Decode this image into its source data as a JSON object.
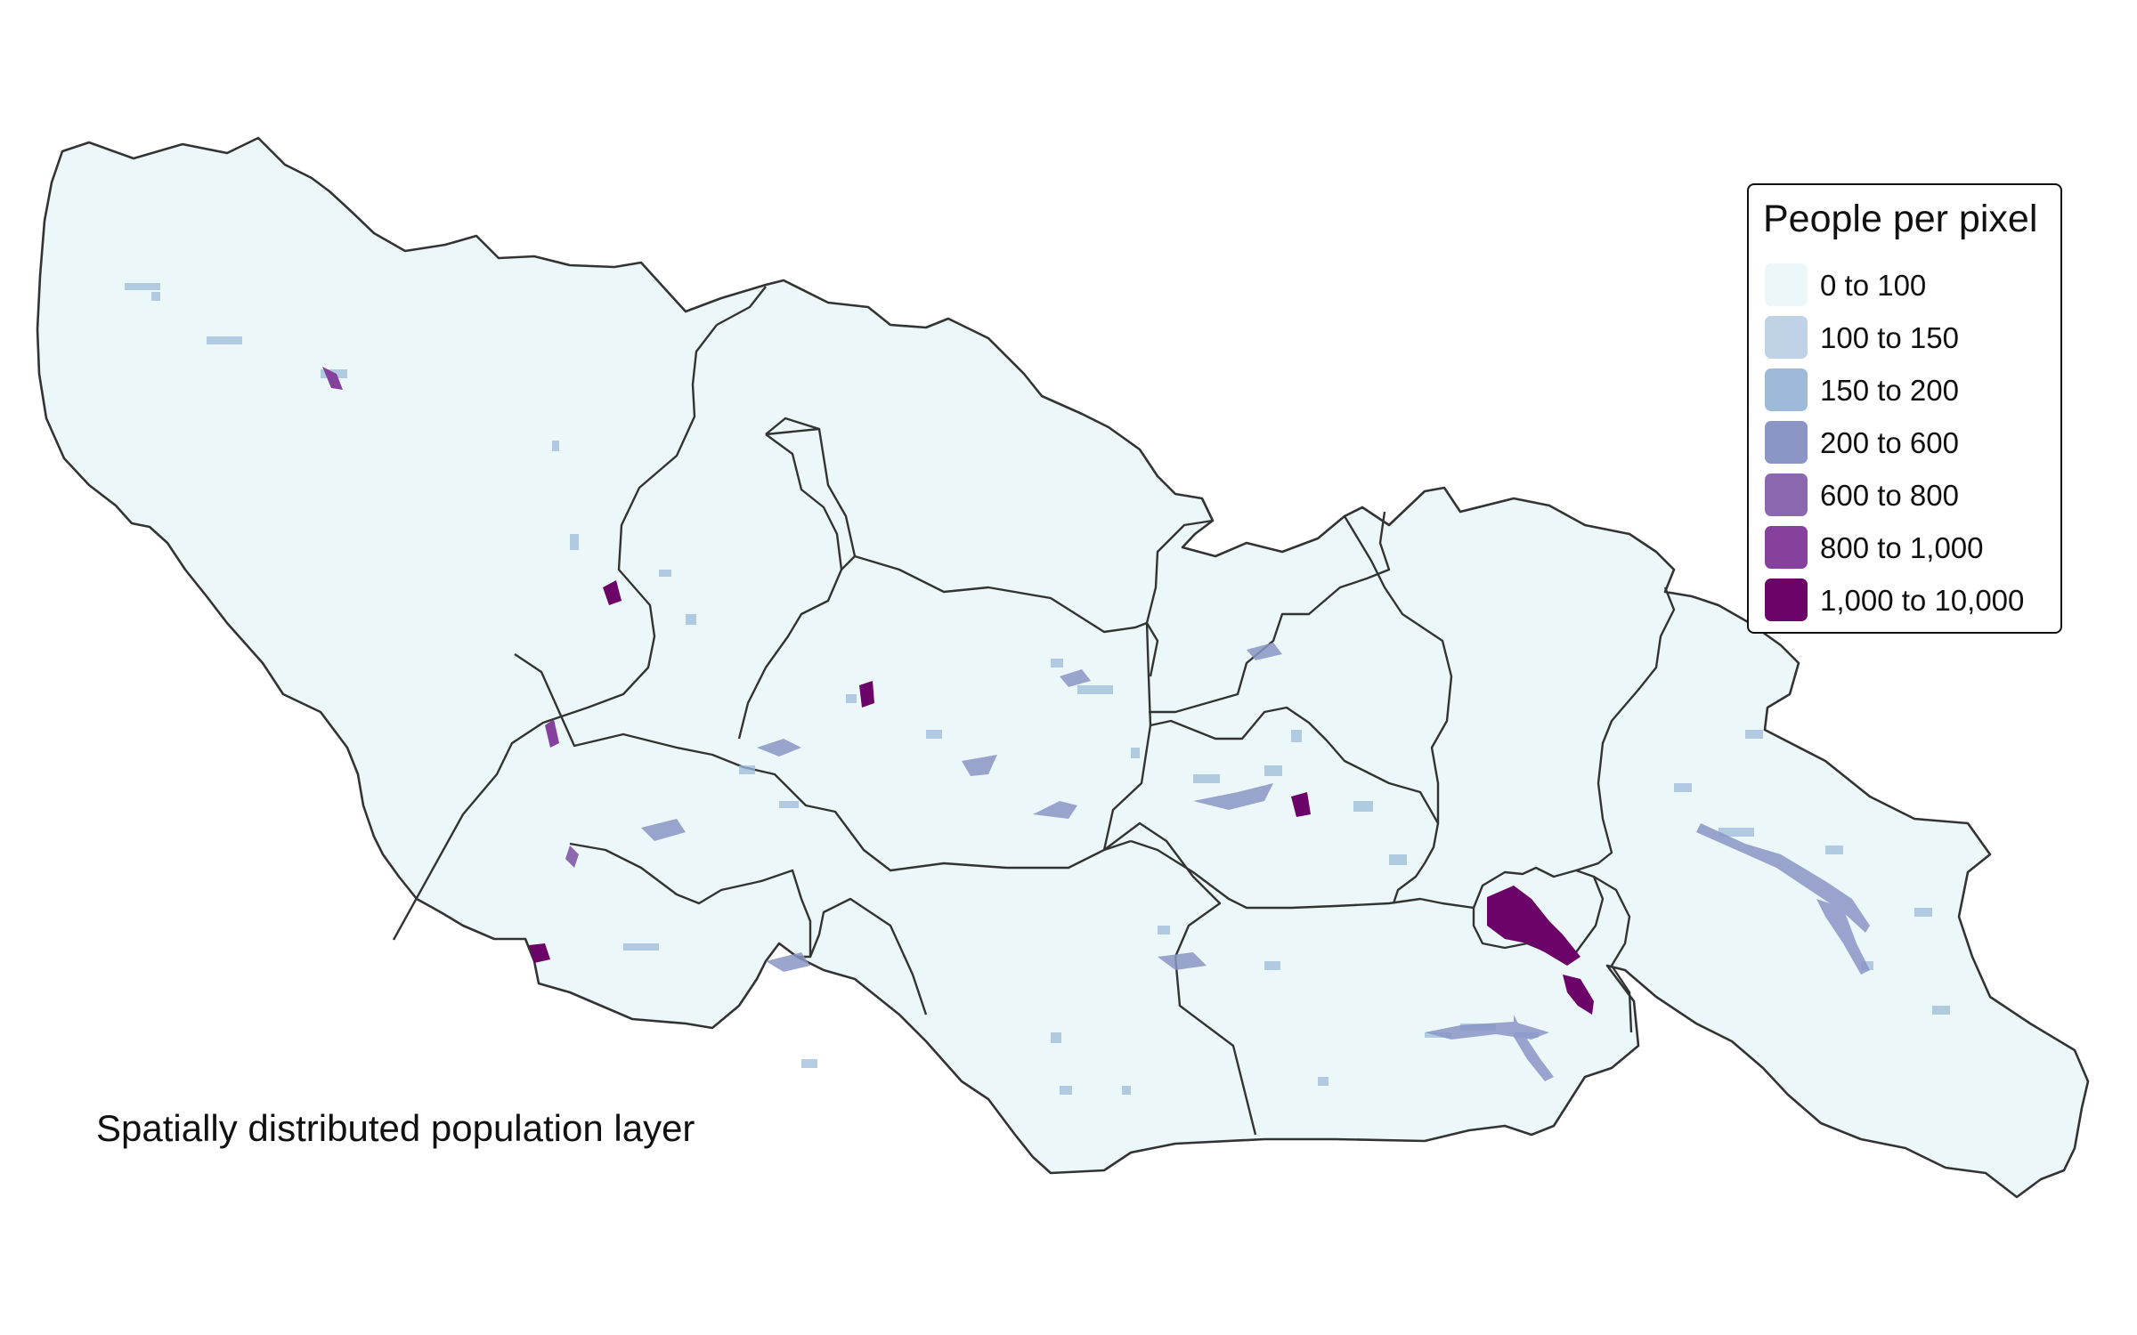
{
  "legend": {
    "title": "People per pixel",
    "classes": [
      {
        "label": "0 to 100",
        "color": "#ebf7f8"
      },
      {
        "label": "100 to 150",
        "color": "#bfd2e6"
      },
      {
        "label": "150 to 200",
        "color": "#9dbbd9"
      },
      {
        "label": "200 to 600",
        "color": "#8b95c6"
      },
      {
        "label": "600 to 800",
        "color": "#8c68b0"
      },
      {
        "label": "800 to 1,000",
        "color": "#86409d"
      },
      {
        "label": "1,000 to 10,000",
        "color": "#6b0368"
      }
    ]
  },
  "caption": "Spatially distributed population layer",
  "map": {
    "fill_color": "#ebf7f8",
    "border_color": "#333333"
  }
}
